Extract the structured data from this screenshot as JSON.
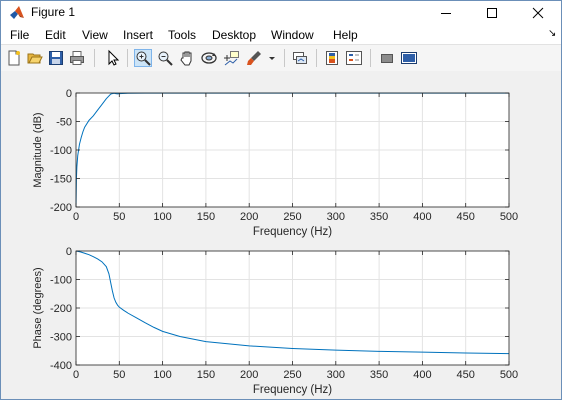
{
  "window": {
    "title": "Figure 1",
    "controls": {
      "minimize_icon": "minimize-icon",
      "maximize_icon": "maximize-icon",
      "close_icon": "close-icon"
    }
  },
  "menu": {
    "items": [
      {
        "label": "File"
      },
      {
        "label": "Edit"
      },
      {
        "label": "View"
      },
      {
        "label": "Insert"
      },
      {
        "label": "Tools"
      },
      {
        "label": "Desktop"
      },
      {
        "label": "Window"
      },
      {
        "label": "Help"
      }
    ],
    "overflow_arrow": "↘"
  },
  "toolbar": {
    "buttons": [
      {
        "icon": "new-figure-icon"
      },
      {
        "icon": "open-file-icon"
      },
      {
        "icon": "save-icon"
      },
      {
        "icon": "print-icon"
      },
      {
        "icon": "edit-plot-arrow-icon"
      },
      {
        "icon": "zoom-in-icon",
        "active": true
      },
      {
        "icon": "zoom-out-icon"
      },
      {
        "icon": "pan-hand-icon"
      },
      {
        "icon": "rotate-3d-icon"
      },
      {
        "icon": "data-cursor-icon"
      },
      {
        "icon": "brush-icon"
      },
      {
        "icon": "link-plot-icon"
      },
      {
        "icon": "insert-colorbar-icon"
      },
      {
        "icon": "insert-legend-icon"
      },
      {
        "icon": "hide-plot-tools-icon"
      },
      {
        "icon": "show-plot-tools-icon"
      }
    ]
  },
  "chart_data": [
    {
      "type": "line",
      "title": "",
      "xlabel": "Frequency (Hz)",
      "ylabel": "Magnitude (dB)",
      "xlim": [
        0,
        500
      ],
      "ylim": [
        -200,
        0
      ],
      "xticks": [
        "0",
        "50",
        "100",
        "150",
        "200",
        "250",
        "300",
        "350",
        "400",
        "450",
        "500"
      ],
      "yticks": [
        "-200",
        "-150",
        "-100",
        "-50",
        "0"
      ],
      "grid": true,
      "series": [
        {
          "color": "#0072bd",
          "x": [
            0,
            0.5,
            1,
            2,
            4,
            6,
            8,
            10,
            15,
            20,
            25,
            30,
            35,
            40,
            42,
            44,
            46,
            48,
            50,
            60,
            80,
            100,
            150,
            200,
            250,
            300,
            350,
            400,
            450,
            500
          ],
          "y": [
            -200,
            -150,
            -130,
            -110,
            -90,
            -78,
            -68,
            -60,
            -48,
            -40,
            -30,
            -20,
            -10,
            -2,
            -1,
            -0.5,
            -1,
            -1.5,
            -1,
            -0.5,
            -0.3,
            -0.2,
            -0.2,
            -0.2,
            -0.2,
            -0.3,
            -0.3,
            -0.3,
            -0.3,
            -0.3
          ]
        }
      ]
    },
    {
      "type": "line",
      "title": "",
      "xlabel": "Frequency (Hz)",
      "ylabel": "Phase (degrees)",
      "xlim": [
        0,
        500
      ],
      "ylim": [
        -400,
        0
      ],
      "xticks": [
        "0",
        "50",
        "100",
        "150",
        "200",
        "250",
        "300",
        "350",
        "400",
        "450",
        "500"
      ],
      "yticks": [
        "-400",
        "-300",
        "-200",
        "-100",
        "0"
      ],
      "grid": true,
      "series": [
        {
          "color": "#0072bd",
          "x": [
            0,
            5,
            10,
            15,
            20,
            25,
            30,
            35,
            38,
            40,
            42,
            44,
            46,
            48,
            50,
            55,
            60,
            70,
            80,
            90,
            100,
            120,
            150,
            200,
            250,
            300,
            350,
            400,
            450,
            500
          ],
          "y": [
            0,
            -3,
            -8,
            -13,
            -20,
            -28,
            -38,
            -55,
            -80,
            -110,
            -140,
            -165,
            -180,
            -190,
            -197,
            -208,
            -218,
            -235,
            -252,
            -268,
            -282,
            -300,
            -318,
            -333,
            -342,
            -348,
            -352,
            -355,
            -358,
            -360
          ]
        }
      ]
    }
  ]
}
